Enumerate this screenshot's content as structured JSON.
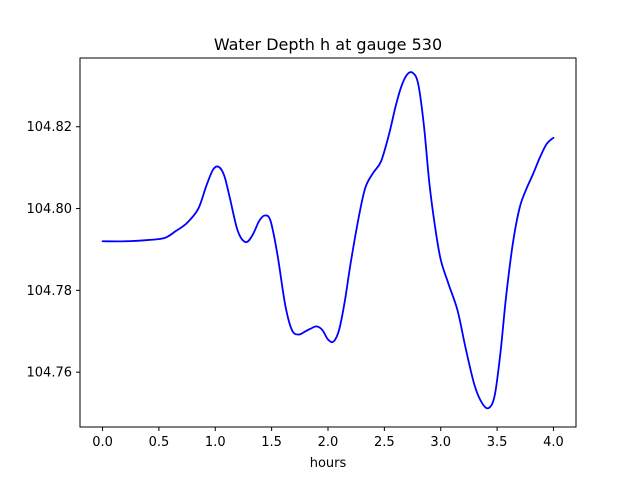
{
  "chart_data": {
    "type": "line",
    "title": "Water Depth h at gauge 530",
    "xlabel": "hours",
    "ylabel": "",
    "xlim": [
      -0.2,
      4.2
    ],
    "ylim": [
      104.7466,
      104.8368
    ],
    "xticks": [
      0.0,
      0.5,
      1.0,
      1.5,
      2.0,
      2.5,
      3.0,
      3.5,
      4.0
    ],
    "xtick_labels": [
      "0.0",
      "0.5",
      "1.0",
      "1.5",
      "2.0",
      "2.5",
      "3.0",
      "3.5",
      "4.0"
    ],
    "yticks": [
      104.76,
      104.78,
      104.8,
      104.82
    ],
    "ytick_labels": [
      "104.76",
      "104.78",
      "104.80",
      "104.82"
    ],
    "grid": false,
    "series": [
      {
        "color": "#0000ff",
        "x": [
          0.0,
          0.2,
          0.4,
          0.55,
          0.65,
          0.75,
          0.85,
          0.92,
          0.98,
          1.03,
          1.08,
          1.13,
          1.2,
          1.27,
          1.33,
          1.39,
          1.44,
          1.49,
          1.55,
          1.62,
          1.68,
          1.74,
          1.8,
          1.85,
          1.9,
          1.95,
          2.0,
          2.05,
          2.1,
          2.15,
          2.2,
          2.27,
          2.33,
          2.4,
          2.47,
          2.54,
          2.6,
          2.65,
          2.7,
          2.75,
          2.8,
          2.85,
          2.9,
          2.95,
          3.0,
          3.07,
          3.15,
          3.22,
          3.3,
          3.37,
          3.43,
          3.48,
          3.53,
          3.58,
          3.64,
          3.7,
          3.76,
          3.82,
          3.88,
          3.94,
          4.0
        ],
        "y": [
          104.792,
          104.792,
          104.7923,
          104.7928,
          104.7945,
          104.7965,
          104.8,
          104.8055,
          104.8095,
          104.8102,
          104.808,
          104.8025,
          104.7945,
          104.7918,
          104.7935,
          104.797,
          104.7983,
          104.797,
          104.789,
          104.7765,
          104.7703,
          104.7692,
          104.77,
          104.7707,
          104.7712,
          104.7703,
          104.768,
          104.7675,
          104.7705,
          104.7775,
          104.7865,
          104.7975,
          104.805,
          104.8087,
          104.8115,
          104.818,
          104.825,
          104.8298,
          104.8327,
          104.8332,
          104.8305,
          104.8205,
          104.806,
          104.7955,
          104.7875,
          104.7815,
          104.775,
          104.766,
          104.7568,
          104.7523,
          104.7513,
          104.7545,
          104.7648,
          104.7785,
          104.7915,
          104.8002,
          104.8048,
          104.8085,
          104.8125,
          104.8158,
          104.8173
        ]
      }
    ]
  }
}
